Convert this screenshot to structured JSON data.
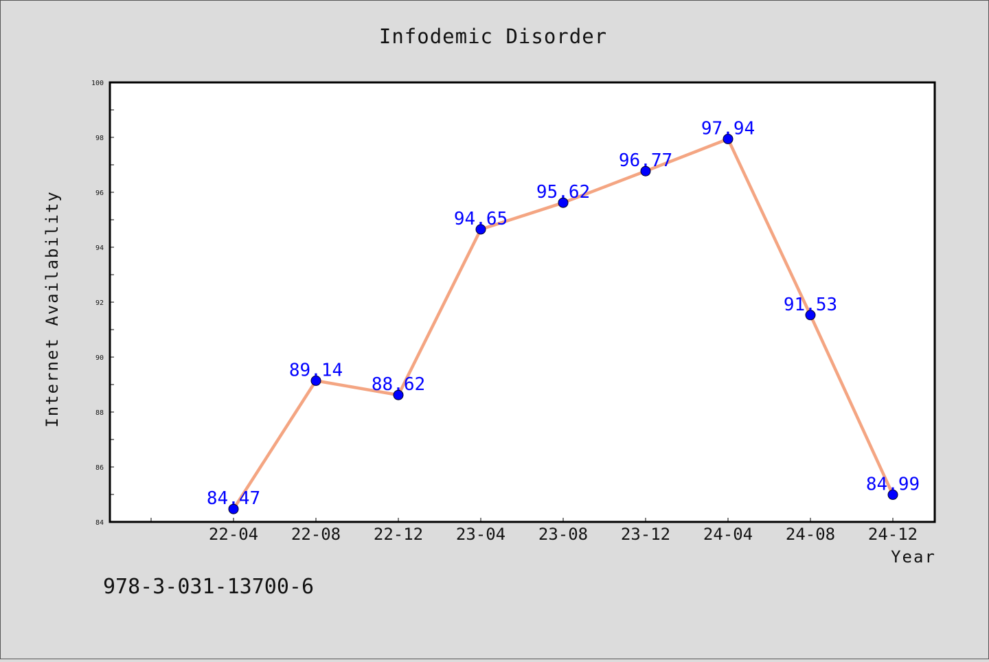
{
  "chart_data": {
    "type": "line",
    "title": "Infodemic Disorder",
    "xlabel": "Year",
    "ylabel": "Internet Availability",
    "categories": [
      "22-04",
      "22-08",
      "22-12",
      "23-04",
      "23-08",
      "23-12",
      "24-04",
      "24-08",
      "24-12"
    ],
    "series": [
      {
        "values": [
          84.47,
          89.14,
          88.62,
          94.65,
          95.62,
          96.77,
          97.94,
          91.53,
          84.99
        ],
        "data_labels": [
          "84.47",
          "89.14",
          "88.62",
          "94.65",
          "95.62",
          "96.77",
          "97.94",
          "91.53",
          "84.99"
        ]
      }
    ],
    "ylim": [
      84,
      100
    ],
    "yticks": [
      "84",
      "86",
      "88",
      "90",
      "92",
      "94",
      "96",
      "98",
      "100"
    ],
    "grid": false,
    "line_color": "#f4a582",
    "marker_color": "#0000ff",
    "label_color": "#0000ff"
  },
  "footer": {
    "isbn": "978-3-031-13700-6"
  }
}
